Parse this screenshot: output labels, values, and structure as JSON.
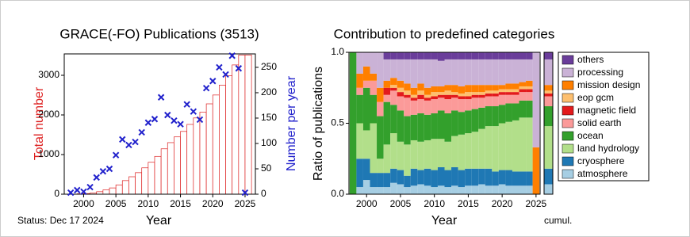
{
  "status": "Status: Dec 17 2024",
  "chart_data": [
    {
      "type": "step-bar-scatter",
      "title": "GRACE(-FO) Publications (3513)",
      "xlabel": "Year",
      "ylabel": "Total number",
      "y2label": "Number per year",
      "x": [
        1998,
        1999,
        2000,
        2001,
        2002,
        2003,
        2004,
        2005,
        2006,
        2007,
        2008,
        2009,
        2010,
        2011,
        2012,
        2013,
        2014,
        2015,
        2016,
        2017,
        2018,
        2019,
        2020,
        2021,
        2022,
        2023,
        2024,
        2025
      ],
      "series": [
        {
          "color": "#dd2222",
          "axis": "y",
          "values": [
            3,
            11,
            16,
            30,
            63,
            108,
            158,
            235,
            343,
            440,
            543,
            665,
            806,
            954,
            1145,
            1301,
            1446,
            1584,
            1761,
            1924,
            2071,
            2280,
            2503,
            2753,
            2989,
            3262,
            3510,
            3513
          ]
        },
        {
          "color": "#2222cc",
          "axis": "y2",
          "values": [
            3,
            8,
            5,
            14,
            33,
            45,
            50,
            77,
            108,
            97,
            103,
            122,
            141,
            148,
            191,
            156,
            145,
            138,
            177,
            163,
            147,
            209,
            223,
            250,
            236,
            273,
            248,
            3
          ]
        }
      ],
      "xlim": [
        1997,
        2026.6
      ],
      "xticks": [
        2000,
        2005,
        2010,
        2015,
        2020,
        2025
      ],
      "ylim": [
        0,
        3540
      ],
      "yticks": [
        0,
        1000,
        2000,
        3000
      ],
      "y2lim": [
        0,
        276.5
      ],
      "y2ticks": [
        0,
        50,
        100,
        150,
        200,
        250
      ]
    },
    {
      "type": "stacked-bar",
      "title": "Contribution to predefined categories",
      "xlabel": "Year",
      "ylabel": "Ratio of publications",
      "cumulative_label": "cumul.",
      "x": [
        1998,
        1999,
        2000,
        2001,
        2002,
        2003,
        2004,
        2005,
        2006,
        2007,
        2008,
        2009,
        2010,
        2011,
        2012,
        2013,
        2014,
        2015,
        2016,
        2017,
        2018,
        2019,
        2020,
        2021,
        2022,
        2023,
        2024,
        2025
      ],
      "xlim": [
        1997.4,
        2025.6
      ],
      "xticks": [
        2000,
        2005,
        2010,
        2015,
        2020,
        2025
      ],
      "ylim": [
        0,
        1
      ],
      "yticks": [
        {
          "value": 0,
          "label": "0.0"
        },
        0.5,
        {
          "value": 1,
          "label": "1.0"
        }
      ],
      "legend": "right",
      "series": [
        {
          "name": "atmosphere",
          "color": "#a6cee3",
          "cumulative": 0.07,
          "values": [
            0,
            0.05,
            0.1,
            0.05,
            0.05,
            0.05,
            0.08,
            0.07,
            0.05,
            0.06,
            0.07,
            0.06,
            0.05,
            0.06,
            0.05,
            0.06,
            0.05,
            0.06,
            0.06,
            0.07,
            0.06,
            0.06,
            0.07,
            0.06,
            0.06,
            0.06,
            0.06,
            0
          ]
        },
        {
          "name": "cryosphere",
          "color": "#1f78b4",
          "cumulative": 0.11,
          "values": [
            0,
            0.2,
            0.15,
            0.1,
            0.1,
            0.1,
            0.1,
            0.1,
            0.08,
            0.12,
            0.1,
            0.12,
            0.12,
            0.13,
            0.12,
            0.13,
            0.12,
            0.12,
            0.12,
            0.11,
            0.12,
            0.1,
            0.1,
            0.11,
            0.1,
            0.1,
            0.1,
            0
          ]
        },
        {
          "name": "land hydrology",
          "color": "#b2df8a",
          "cumulative": 0.3,
          "values": [
            0,
            0.25,
            0.2,
            0.35,
            0.1,
            0.2,
            0.25,
            0.2,
            0.22,
            0.2,
            0.2,
            0.2,
            0.22,
            0.2,
            0.2,
            0.22,
            0.25,
            0.25,
            0.26,
            0.28,
            0.3,
            0.32,
            0.33,
            0.34,
            0.36,
            0.38,
            0.38,
            0
          ]
        },
        {
          "name": "ocean",
          "color": "#33a02c",
          "cumulative": 0.14,
          "values": [
            1,
            0.2,
            0.3,
            0.2,
            0.3,
            0.3,
            0.2,
            0.22,
            0.2,
            0.18,
            0.2,
            0.18,
            0.18,
            0.2,
            0.2,
            0.18,
            0.16,
            0.16,
            0.16,
            0.15,
            0.14,
            0.14,
            0.13,
            0.13,
            0.12,
            0.12,
            0.12,
            0
          ]
        },
        {
          "name": "solid earth",
          "color": "#fb9a99",
          "cumulative": 0.07,
          "values": [
            0,
            0.05,
            0.05,
            0.1,
            0.1,
            0.05,
            0.1,
            0.1,
            0.13,
            0.1,
            0.1,
            0.1,
            0.1,
            0.09,
            0.1,
            0.09,
            0.09,
            0.08,
            0.08,
            0.07,
            0.07,
            0.07,
            0.07,
            0.06,
            0.06,
            0.06,
            0.06,
            0
          ]
        },
        {
          "name": "magnetic field",
          "color": "#e31a1c",
          "cumulative": 0.02,
          "values": [
            0,
            0,
            0,
            0,
            0,
            0.05,
            0.02,
            0.03,
            0.02,
            0.02,
            0.03,
            0.02,
            0.02,
            0.02,
            0.03,
            0.02,
            0.02,
            0.02,
            0.02,
            0.02,
            0.02,
            0.02,
            0.02,
            0.02,
            0.02,
            0.02,
            0.02,
            0
          ]
        },
        {
          "name": "eop gcm",
          "color": "#fdbf6f",
          "cumulative": 0.02,
          "values": [
            0,
            0,
            0,
            0,
            0,
            0,
            0.02,
            0.03,
            0.03,
            0.02,
            0.03,
            0.02,
            0.03,
            0.02,
            0.03,
            0.02,
            0.02,
            0.03,
            0.02,
            0.02,
            0.02,
            0.02,
            0.02,
            0.02,
            0.02,
            0.02,
            0.02,
            0
          ]
        },
        {
          "name": "mission design",
          "color": "#ff7f00",
          "cumulative": 0.04,
          "values": [
            0,
            0.1,
            0.1,
            0.05,
            0.1,
            0.05,
            0.05,
            0.05,
            0.05,
            0.05,
            0.05,
            0.05,
            0.04,
            0.04,
            0.04,
            0.05,
            0.05,
            0.05,
            0.05,
            0.05,
            0.04,
            0.04,
            0.03,
            0.04,
            0.04,
            0.03,
            0.04,
            0.33
          ]
        },
        {
          "name": "processing",
          "color": "#cab2d6",
          "cumulative": 0.18,
          "values": [
            0,
            0.15,
            0.1,
            0.15,
            0.25,
            0.15,
            0.13,
            0.15,
            0.17,
            0.2,
            0.17,
            0.2,
            0.19,
            0.18,
            0.18,
            0.18,
            0.19,
            0.18,
            0.18,
            0.18,
            0.18,
            0.18,
            0.18,
            0.17,
            0.17,
            0.16,
            0.15,
            0.67
          ]
        },
        {
          "name": "others",
          "color": "#6a3d9a",
          "cumulative": 0.05,
          "values": [
            0,
            0,
            0,
            0,
            0,
            0.05,
            0.05,
            0.05,
            0.05,
            0.05,
            0.05,
            0.05,
            0.05,
            0.06,
            0.05,
            0.05,
            0.05,
            0.05,
            0.05,
            0.05,
            0.05,
            0.05,
            0.05,
            0.05,
            0.05,
            0.05,
            0.05,
            0
          ]
        }
      ]
    }
  ]
}
